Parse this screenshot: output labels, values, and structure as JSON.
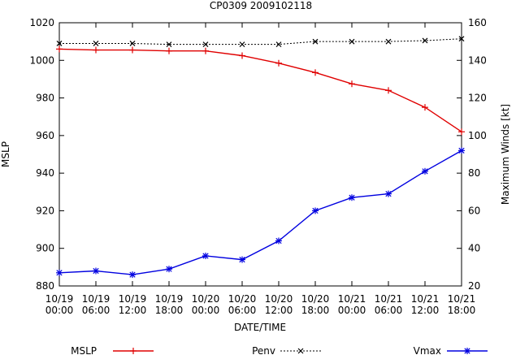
{
  "chart_data": {
    "type": "line",
    "title": "CP0309 2009102118",
    "xlabel": "DATE/TIME",
    "ylabel": "MSLP",
    "y2label": "Maximum Winds [kt]",
    "ylim": [
      880,
      1020
    ],
    "y2lim": [
      20,
      160
    ],
    "yticks": [
      880,
      900,
      920,
      940,
      960,
      980,
      1000,
      1020
    ],
    "y2ticks": [
      20,
      40,
      60,
      80,
      100,
      120,
      140,
      160
    ],
    "categories": [
      [
        "10/19",
        "00:00"
      ],
      [
        "10/19",
        "06:00"
      ],
      [
        "10/19",
        "12:00"
      ],
      [
        "10/19",
        "18:00"
      ],
      [
        "10/20",
        "00:00"
      ],
      [
        "10/20",
        "06:00"
      ],
      [
        "10/20",
        "12:00"
      ],
      [
        "10/20",
        "18:00"
      ],
      [
        "10/21",
        "00:00"
      ],
      [
        "10/21",
        "06:00"
      ],
      [
        "10/21",
        "12:00"
      ],
      [
        "10/21",
        "18:00"
      ]
    ],
    "series": [
      {
        "name": "MSLP",
        "axis": "left",
        "color": "#e00000",
        "marker": "plus",
        "values": [
          1006,
          1005.5,
          1005.5,
          1005,
          1005,
          1002.5,
          998.5,
          993.5,
          987.5,
          984,
          975,
          962
        ]
      },
      {
        "name": "Penv",
        "axis": "left",
        "color": "#000000",
        "marker": "cross",
        "dashed": true,
        "values": [
          1009,
          1009,
          1009,
          1008.5,
          1008.5,
          1008.5,
          1008.5,
          1010,
          1010,
          1010,
          1010.5,
          1011.5
        ]
      },
      {
        "name": "Vmax",
        "axis": "right",
        "color": "#0000e0",
        "marker": "star",
        "values": [
          27,
          28,
          26,
          29,
          36,
          34,
          44,
          60,
          67,
          69,
          81,
          92
        ]
      }
    ],
    "legend": [
      "MSLP",
      "Penv",
      "Vmax"
    ],
    "legend_position": "bottom",
    "grid": false
  }
}
